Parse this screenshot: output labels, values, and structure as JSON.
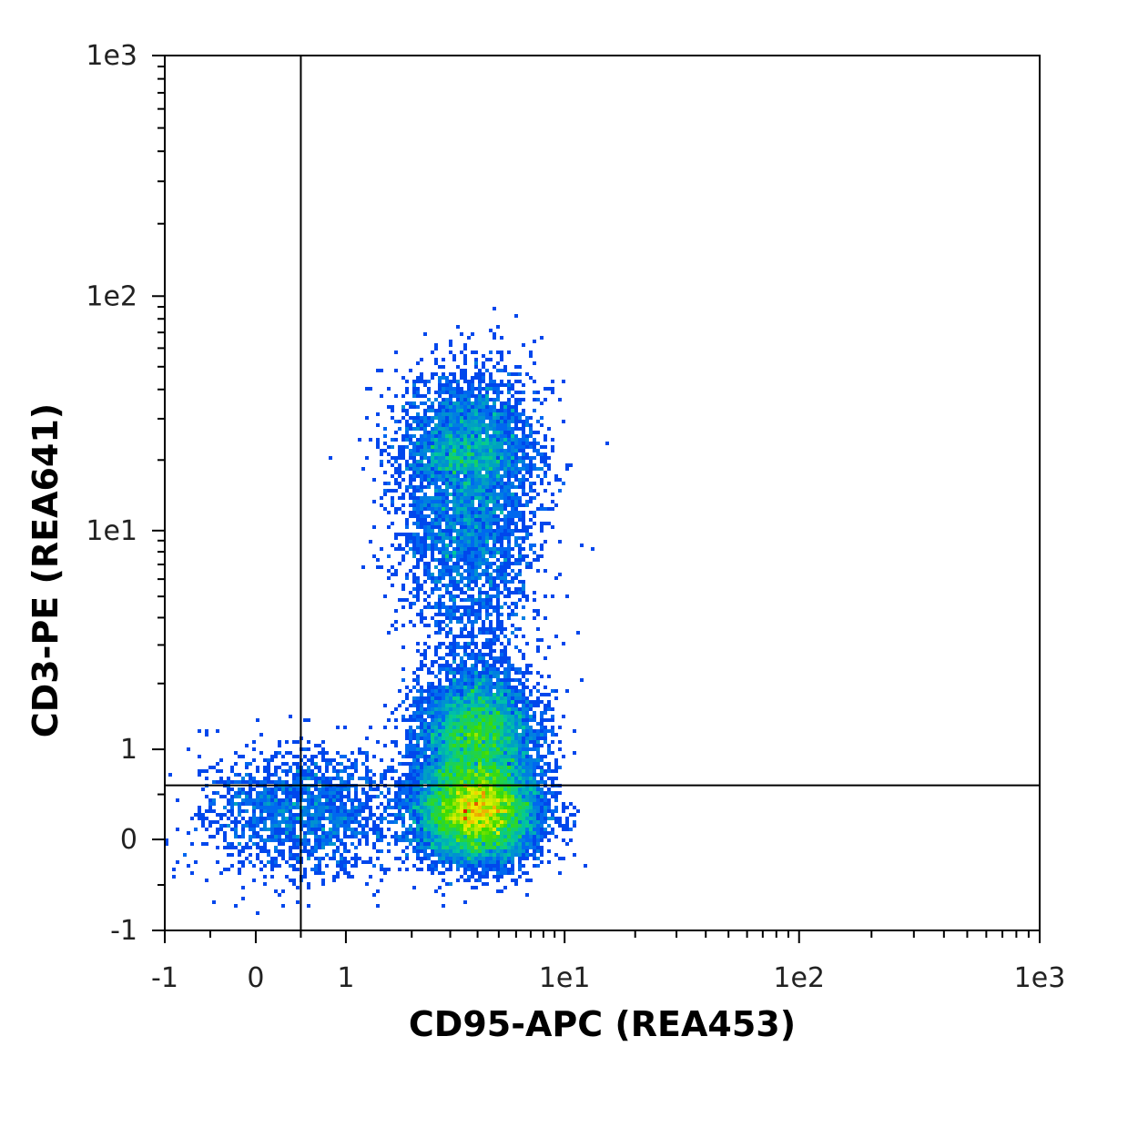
{
  "chart_data": {
    "type": "scatter",
    "title": "",
    "xlabel": "CD95-APC (REA453)",
    "ylabel": "CD3-PE (REA641)",
    "xscale": "biexponential",
    "yscale": "biexponential",
    "xlim": [
      -1,
      1000
    ],
    "ylim": [
      -1,
      1000
    ],
    "x_ticks": [
      "-1",
      "0",
      "1",
      "1e1",
      "1e2",
      "1e3"
    ],
    "y_ticks": [
      "-1",
      "0",
      "1",
      "1e1",
      "1e2",
      "1e3"
    ],
    "grid": false,
    "legend": "none",
    "colormap": "density (blue-green-yellow-red)",
    "quadrant_gate": {
      "x": 0.5,
      "y": 0.6
    },
    "populations": [
      {
        "name": "",
        "x_center": 4.0,
        "y_center": 0.3,
        "x_spread": 1.5,
        "y_spread": 0.25,
        "relative_density": "highest"
      },
      {
        "name": "",
        "x_center": 4.0,
        "y_center": 1.1,
        "x_spread": 1.4,
        "y_spread": 0.5,
        "relative_density": "high"
      },
      {
        "name": "",
        "x_center": 3.6,
        "y_center": 18,
        "x_spread": 1.6,
        "y_spread": 12,
        "relative_density": "medium"
      },
      {
        "name": "",
        "x_center": 0.5,
        "y_center": 0.3,
        "x_spread": 0.6,
        "y_spread": 0.35,
        "relative_density": "low"
      }
    ]
  }
}
